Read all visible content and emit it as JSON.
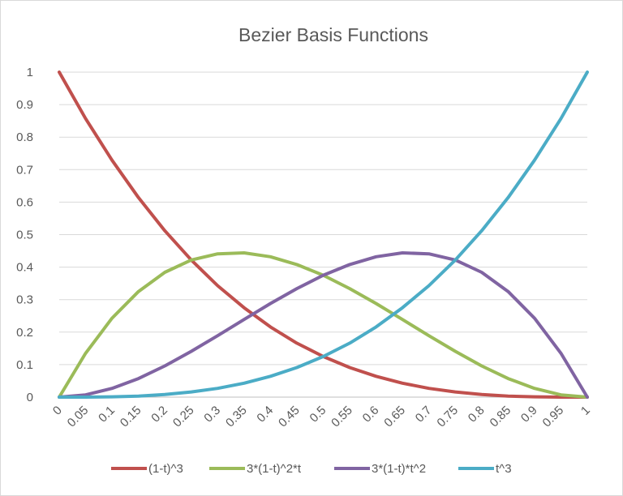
{
  "chart_data": {
    "type": "line",
    "title": "Bezier Basis Functions",
    "xlabel": "",
    "ylabel": "",
    "categories": [
      "0",
      "0.05",
      "0.1",
      "0.15",
      "0.2",
      "0.25",
      "0.3",
      "0.35",
      "0.4",
      "0.45",
      "0.5",
      "0.55",
      "0.6",
      "0.65",
      "0.7",
      "0.75",
      "0.8",
      "0.85",
      "0.9",
      "0.95",
      "1"
    ],
    "ylim": [
      0,
      1
    ],
    "yticks": [
      "0",
      "0.1",
      "0.2",
      "0.3",
      "0.4",
      "0.5",
      "0.6",
      "0.7",
      "0.8",
      "0.9",
      "1"
    ],
    "grid": true,
    "legend_position": "bottom",
    "series": [
      {
        "name": "(1-t)^3",
        "color": "#c0504d",
        "values": [
          1,
          0.857,
          0.729,
          0.614,
          0.512,
          0.422,
          0.343,
          0.275,
          0.216,
          0.166,
          0.125,
          0.091,
          0.064,
          0.043,
          0.027,
          0.016,
          0.008,
          0.003,
          0.001,
          0.0001,
          0
        ]
      },
      {
        "name": "3*(1-t)^2*t",
        "color": "#9bbb59",
        "values": [
          0,
          0.135,
          0.243,
          0.325,
          0.384,
          0.422,
          0.441,
          0.444,
          0.432,
          0.408,
          0.375,
          0.334,
          0.288,
          0.239,
          0.189,
          0.141,
          0.096,
          0.057,
          0.027,
          0.007,
          0
        ]
      },
      {
        "name": "3*(1-t)*t^2",
        "color": "#8064a2",
        "values": [
          0,
          0.007,
          0.027,
          0.057,
          0.096,
          0.141,
          0.189,
          0.239,
          0.288,
          0.334,
          0.375,
          0.408,
          0.432,
          0.444,
          0.441,
          0.422,
          0.384,
          0.325,
          0.243,
          0.135,
          0
        ]
      },
      {
        "name": "t^3",
        "color": "#4bacc6",
        "values": [
          0,
          0.0001,
          0.001,
          0.003,
          0.008,
          0.016,
          0.027,
          0.043,
          0.064,
          0.091,
          0.125,
          0.166,
          0.216,
          0.275,
          0.343,
          0.422,
          0.512,
          0.614,
          0.729,
          0.857,
          1
        ]
      }
    ]
  }
}
